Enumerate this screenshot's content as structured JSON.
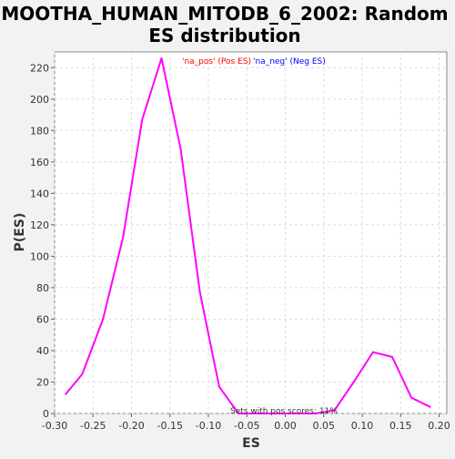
{
  "chart_data": {
    "type": "line",
    "title_lines": [
      "MOOTHA_HUMAN_MITODB_6_2002: Random",
      "ES distribution"
    ],
    "xlabel": "ES",
    "ylabel": "P(ES)",
    "xlim": [
      -0.3,
      0.21
    ],
    "ylim": [
      0,
      230
    ],
    "x_ticks": [
      -0.3,
      -0.25,
      -0.2,
      -0.15,
      -0.1,
      -0.05,
      0.0,
      0.05,
      0.1,
      0.15,
      0.2
    ],
    "x_tick_labels": [
      "-0.30",
      "-0.25",
      "-0.20",
      "-0.15",
      "-0.10",
      "-0.05",
      "0.00",
      "0.05",
      "0.10",
      "0.15",
      "0.20"
    ],
    "y_ticks": [
      0,
      20,
      40,
      60,
      80,
      100,
      120,
      140,
      160,
      180,
      200,
      220
    ],
    "y_tick_labels": [
      "0",
      "20",
      "40",
      "60",
      "80",
      "100",
      "120",
      "140",
      "160",
      "180",
      "200",
      "220"
    ],
    "grid": true,
    "legend": [
      {
        "text": "'na_pos' (Pos ES)",
        "color": "#ff0000"
      },
      {
        "text": "'na_neg' (Neg ES)",
        "color": "#0000ff"
      }
    ],
    "annotation": "Sets with pos scores: 11%",
    "series": [
      {
        "color": "#ff00ff",
        "x": [
          -0.286,
          -0.264,
          -0.237,
          -0.211,
          -0.186,
          -0.161,
          -0.136,
          -0.111,
          -0.086,
          -0.061,
          -0.036,
          -0.011,
          0.014,
          0.039,
          0.064,
          0.089,
          0.114,
          0.139,
          0.164,
          0.189
        ],
        "y": [
          12,
          25,
          60,
          112,
          187,
          226,
          168,
          77,
          17,
          0,
          0,
          0,
          0,
          0,
          2,
          20,
          39,
          36,
          10,
          4
        ]
      }
    ]
  }
}
